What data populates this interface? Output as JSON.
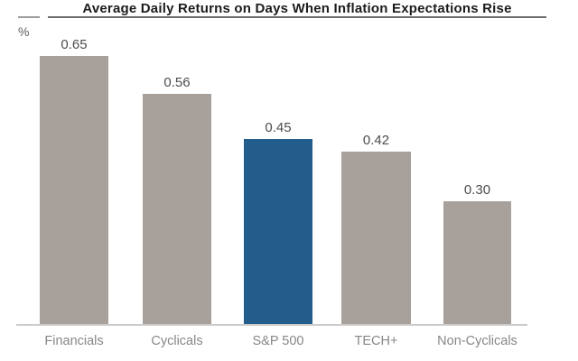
{
  "chart_data": {
    "type": "bar",
    "title": "Average Daily Returns on Days When Inflation Expectations Rise",
    "unit_label": "%",
    "xlabel": "",
    "ylabel": "%",
    "categories": [
      "Financials",
      "Cyclicals",
      "S&P 500",
      "TECH+",
      "Non-Cyclicals"
    ],
    "values": [
      0.65,
      0.56,
      0.45,
      0.42,
      0.3
    ],
    "value_labels": [
      "0.65",
      "0.56",
      "0.45",
      "0.42",
      "0.30"
    ],
    "highlight_index": 2,
    "highlight_category": "S&P 500",
    "ylim": [
      0,
      0.72
    ],
    "grid": false,
    "legend": false,
    "colors": {
      "bar": "#a8a19b",
      "highlight": "#235d8c",
      "axis_line": "#cbcbcb",
      "title_text": "#1c1c1c",
      "title_rule": "#6e6e6e",
      "corner_rule": "#9d9d9d",
      "value_label": "#4c4c4c",
      "category_label": "#878787",
      "unit_label": "#5c5c5c",
      "background": "#ffffff"
    }
  }
}
